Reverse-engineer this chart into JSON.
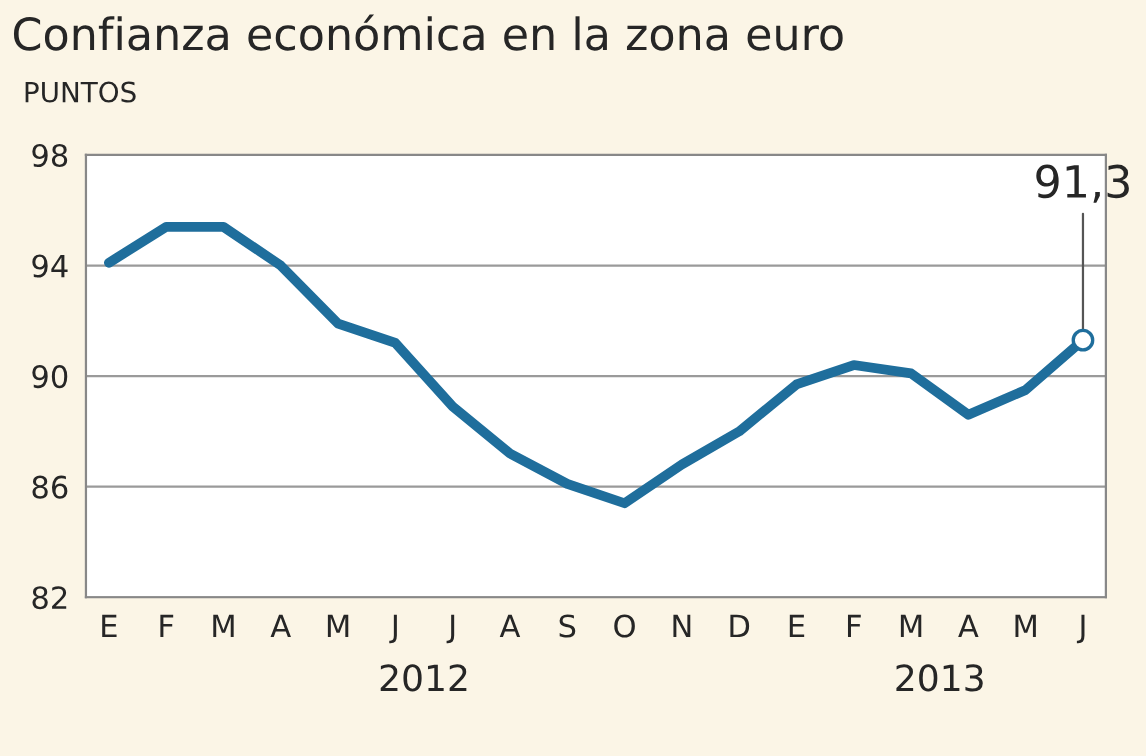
{
  "chart_data": {
    "type": "line",
    "title": "Confianza económica en la zona euro",
    "ylabel": "PUNTOS",
    "categories": [
      "E",
      "F",
      "M",
      "A",
      "M",
      "J",
      "J",
      "A",
      "S",
      "O",
      "N",
      "D",
      "E",
      "F",
      "M",
      "A",
      "M",
      "J"
    ],
    "series": [
      {
        "color": "#1f6e9c",
        "values": [
          94.1,
          95.4,
          95.4,
          94.0,
          91.9,
          91.2,
          88.9,
          87.2,
          86.1,
          85.4,
          86.8,
          88.0,
          89.7,
          90.4,
          90.1,
          88.6,
          89.5,
          91.3
        ],
        "value_labels": [
          null,
          null,
          null,
          null,
          null,
          null,
          null,
          null,
          null,
          null,
          null,
          null,
          null,
          null,
          null,
          null,
          null,
          "91,3"
        ]
      }
    ],
    "annotations": [
      "2012",
      "2013"
    ],
    "ylim": [
      82,
      98
    ],
    "yticks": [
      82,
      86,
      90,
      94,
      98
    ],
    "grid": "y",
    "marker": "none",
    "line_style": "solid"
  }
}
